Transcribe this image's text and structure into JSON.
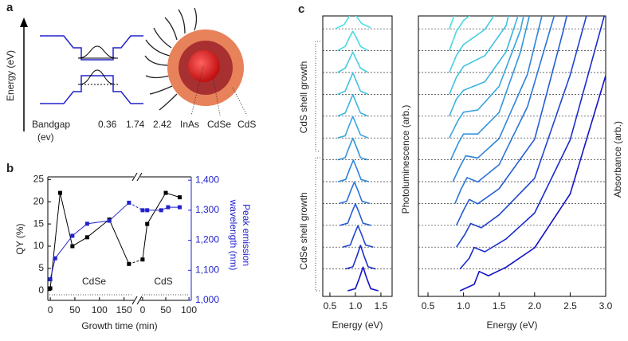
{
  "panel_labels": [
    "a",
    "b",
    "c"
  ],
  "panel_a": {
    "ylabel": "Energy (eV)",
    "bandgap_label": "Bandgap",
    "unit_label": "(ev)",
    "bandgaps": [
      0.36,
      1.74,
      2.42
    ],
    "materials": [
      "InAs",
      "CdSe",
      "CdS"
    ]
  },
  "chart_data": [
    {
      "type": "line",
      "xlabel": "Growth time (min)",
      "ylabel": "QY (%)",
      "y2label": [
        "Peak emission",
        "wavelength (nm)"
      ],
      "annotations": [
        "CdSe",
        "CdS"
      ],
      "x_segments": [
        {
          "xlim": [
            -5,
            170
          ],
          "xticks": [
            0,
            50,
            100,
            150
          ]
        },
        {
          "xlim": [
            -5,
            105
          ],
          "xticks": [
            0,
            50,
            100
          ]
        }
      ],
      "ylim": [
        -2.2,
        25.6
      ],
      "yticks": [
        0,
        5,
        10,
        15,
        20,
        25
      ],
      "y2lim": [
        1000,
        1411
      ],
      "y2ticks": [
        {
          "value": 1000,
          "label": "1,000"
        },
        {
          "value": 1100,
          "label": "1,100"
        },
        {
          "value": 1200,
          "label": "1,200"
        },
        {
          "value": 1300,
          "label": "1,300"
        },
        {
          "value": 1400,
          "label": "1,400"
        }
      ],
      "series": [
        {
          "color": "#000000",
          "axis": "y",
          "segments": [
            {
              "x": [
                0,
                20,
                45,
                75,
                120,
                160
              ],
              "values": [
                0.5,
                22,
                10,
                12,
                16,
                6
              ]
            },
            {
              "x": [
                0,
                10,
                50,
                80
              ],
              "values": [
                7,
                15,
                22,
                21
              ]
            }
          ]
        },
        {
          "color": "#2222cc",
          "axis": "y2",
          "segments": [
            {
              "x": [
                0,
                10,
                45,
                75,
                120,
                160
              ],
              "values": [
                1070,
                1140,
                1215,
                1255,
                1265,
                1325
              ]
            },
            {
              "x": [
                0,
                10,
                40,
                55,
                80
              ],
              "values": [
                1300,
                1300,
                1300,
                1310,
                1310
              ]
            }
          ]
        }
      ]
    },
    {
      "type": "line",
      "xlabel": "Energy (eV)",
      "ylabel": "Photoluminescence (arb.)",
      "annotations": [
        "CdS shell growth",
        "CdSe shell growth"
      ],
      "xlim": [
        0.36,
        1.72
      ],
      "xticks": [
        0.5,
        {
          "value": 1.0,
          "label": "1.0"
        },
        1.5
      ],
      "series": [
        {
          "color": "#1414c8",
          "x": [
            0.85,
            1.0,
            1.08,
            1.15,
            1.22,
            1.3,
            1.45
          ],
          "values": [
            0,
            0.1,
            0.6,
            1.1,
            0.6,
            0.1,
            0
          ]
        },
        {
          "color": "#1a2ccc",
          "x": [
            0.8,
            0.95,
            1.03,
            1.1,
            1.17,
            1.25,
            1.4
          ],
          "values": [
            0,
            0.1,
            0.6,
            1.1,
            0.6,
            0.1,
            0
          ]
        },
        {
          "color": "#1f44d0",
          "x": [
            0.75,
            0.9,
            0.98,
            1.05,
            1.12,
            1.2,
            1.35
          ],
          "values": [
            0,
            0.1,
            0.6,
            1.0,
            0.6,
            0.1,
            0
          ]
        },
        {
          "color": "#245cd4",
          "x": [
            0.7,
            0.85,
            0.93,
            1.0,
            1.07,
            1.15,
            1.3
          ],
          "values": [
            0,
            0.1,
            0.6,
            1.0,
            0.6,
            0.1,
            0
          ]
        },
        {
          "color": "#2a74d8",
          "x": [
            0.68,
            0.83,
            0.91,
            0.98,
            1.05,
            1.13,
            1.28
          ],
          "values": [
            0,
            0.1,
            0.6,
            1.0,
            0.6,
            0.1,
            0
          ]
        },
        {
          "color": "#2f84da",
          "x": [
            0.66,
            0.81,
            0.89,
            0.96,
            1.03,
            1.11,
            1.26
          ],
          "values": [
            0,
            0.1,
            0.6,
            1.0,
            0.6,
            0.1,
            0
          ]
        },
        {
          "color": "#3394dc",
          "x": [
            0.65,
            0.8,
            0.88,
            0.95,
            1.02,
            1.1,
            1.25
          ],
          "values": [
            0,
            0.1,
            0.6,
            1.0,
            0.6,
            0.1,
            0
          ]
        },
        {
          "color": "#38a4de",
          "x": [
            0.65,
            0.8,
            0.88,
            0.95,
            1.02,
            1.1,
            1.25
          ],
          "values": [
            0,
            0.1,
            0.6,
            1.0,
            0.6,
            0.15,
            0
          ]
        },
        {
          "color": "#3cb4e0",
          "x": [
            0.65,
            0.8,
            0.88,
            0.95,
            1.02,
            1.1,
            1.25
          ],
          "values": [
            0,
            0.15,
            0.6,
            1.0,
            0.6,
            0.15,
            0
          ]
        },
        {
          "color": "#40c2e0",
          "x": [
            0.65,
            0.8,
            0.88,
            0.95,
            1.02,
            1.1,
            1.25
          ],
          "values": [
            0,
            0.15,
            0.6,
            1.0,
            0.6,
            0.15,
            0
          ]
        },
        {
          "color": "#44cee0",
          "x": [
            0.65,
            0.8,
            0.88,
            0.95,
            1.02,
            1.1,
            1.25
          ],
          "values": [
            0,
            0.2,
            0.6,
            0.95,
            0.6,
            0.2,
            0
          ]
        },
        {
          "color": "#48d8e0",
          "x": [
            0.65,
            0.8,
            0.88,
            0.95,
            1.02,
            1.1,
            1.25
          ],
          "values": [
            0,
            0.2,
            0.6,
            0.9,
            0.6,
            0.2,
            0
          ]
        },
        {
          "color": "#4ce2e2",
          "x": [
            0.6,
            0.78,
            0.87,
            0.95,
            1.03,
            1.12,
            1.3
          ],
          "values": [
            0,
            0.2,
            0.55,
            0.85,
            0.55,
            0.25,
            0.05
          ]
        }
      ]
    },
    {
      "type": "line",
      "xlabel": "Energy (eV)",
      "ylabel": "Absorbance (arb.)",
      "xlim": [
        0.365,
        3.0
      ],
      "xticks": [
        0.5,
        {
          "value": 1.0,
          "label": "1.0"
        },
        1.5,
        {
          "value": 2.0,
          "label": "2.0"
        },
        2.5,
        {
          "value": 3.0,
          "label": "3.0"
        }
      ],
      "series": [
        {
          "color": "#1414c8",
          "x": [
            0.95,
            1.15,
            1.22,
            1.35,
            1.6,
            2.0,
            2.5,
            3.0
          ],
          "values": [
            0,
            0.3,
            0.9,
            0.7,
            1.1,
            2.0,
            4.5,
            10
          ]
        },
        {
          "color": "#1a2ccc",
          "x": [
            0.95,
            1.08,
            1.15,
            1.3,
            1.6,
            2.0,
            2.5,
            3.0
          ],
          "values": [
            0,
            0.5,
            1.0,
            0.8,
            1.4,
            2.6,
            6,
            12
          ]
        },
        {
          "color": "#1f44d0",
          "x": [
            0.9,
            1.02,
            1.1,
            1.25,
            1.5,
            2.0,
            2.5,
            3.0
          ],
          "values": [
            0,
            0.6,
            1.1,
            0.9,
            1.5,
            3.2,
            8,
            14
          ]
        },
        {
          "color": "#245cd4",
          "x": [
            0.9,
            1.0,
            1.08,
            1.2,
            1.5,
            2.0,
            2.4,
            2.9
          ],
          "values": [
            0,
            0.7,
            1.2,
            1.0,
            1.7,
            4,
            9,
            16
          ]
        },
        {
          "color": "#2a74d8",
          "x": [
            0.88,
            0.97,
            1.05,
            1.2,
            1.5,
            1.9,
            2.3,
            2.7
          ],
          "values": [
            0,
            0.7,
            1.2,
            1.0,
            1.8,
            4.5,
            9,
            16
          ]
        },
        {
          "color": "#2f84da",
          "x": [
            0.85,
            0.95,
            1.03,
            1.2,
            1.5,
            1.9,
            2.2,
            2.5
          ],
          "values": [
            0,
            0.7,
            1.2,
            1.1,
            2.0,
            5,
            9,
            15
          ]
        },
        {
          "color": "#3394dc",
          "x": [
            0.82,
            0.93,
            1.0,
            1.2,
            1.5,
            1.8,
            2.1,
            2.4
          ],
          "values": [
            0,
            0.8,
            1.2,
            1.2,
            2.2,
            5,
            9,
            15
          ]
        },
        {
          "color": "#38a4de",
          "x": [
            0.8,
            0.92,
            1.0,
            1.2,
            1.5,
            1.8,
            2.0,
            2.2
          ],
          "values": [
            0,
            0.8,
            1.2,
            1.3,
            2.4,
            5,
            8,
            12
          ]
        },
        {
          "color": "#3cb4e0",
          "x": [
            0.8,
            0.9,
            1.0,
            1.3,
            1.6,
            1.8,
            2.0
          ],
          "values": [
            0,
            0.8,
            1.2,
            1.6,
            3,
            5,
            9
          ]
        },
        {
          "color": "#40c2e0",
          "x": [
            0.8,
            0.9,
            1.0,
            1.3,
            1.6,
            1.8,
            1.95
          ],
          "values": [
            0,
            0.8,
            1.3,
            1.8,
            3.2,
            6,
            9
          ]
        },
        {
          "color": "#44cee0",
          "x": [
            0.8,
            0.9,
            1.0,
            1.3,
            1.6,
            1.75,
            1.9
          ],
          "values": [
            0,
            0.8,
            1.3,
            2,
            3.5,
            6,
            9
          ]
        },
        {
          "color": "#48d8e0",
          "x": [
            0.8,
            0.9,
            1.0,
            1.3,
            1.5,
            1.7,
            1.85
          ],
          "values": [
            0,
            0.9,
            1.4,
            2.2,
            3.5,
            6,
            9
          ]
        },
        {
          "color": "#4ce2e2",
          "x": [
            0.8,
            0.9,
            1.0,
            1.3,
            1.5,
            1.7,
            1.8
          ],
          "values": [
            0,
            0.9,
            1.4,
            2.3,
            3.7,
            6,
            8
          ]
        }
      ]
    }
  ]
}
